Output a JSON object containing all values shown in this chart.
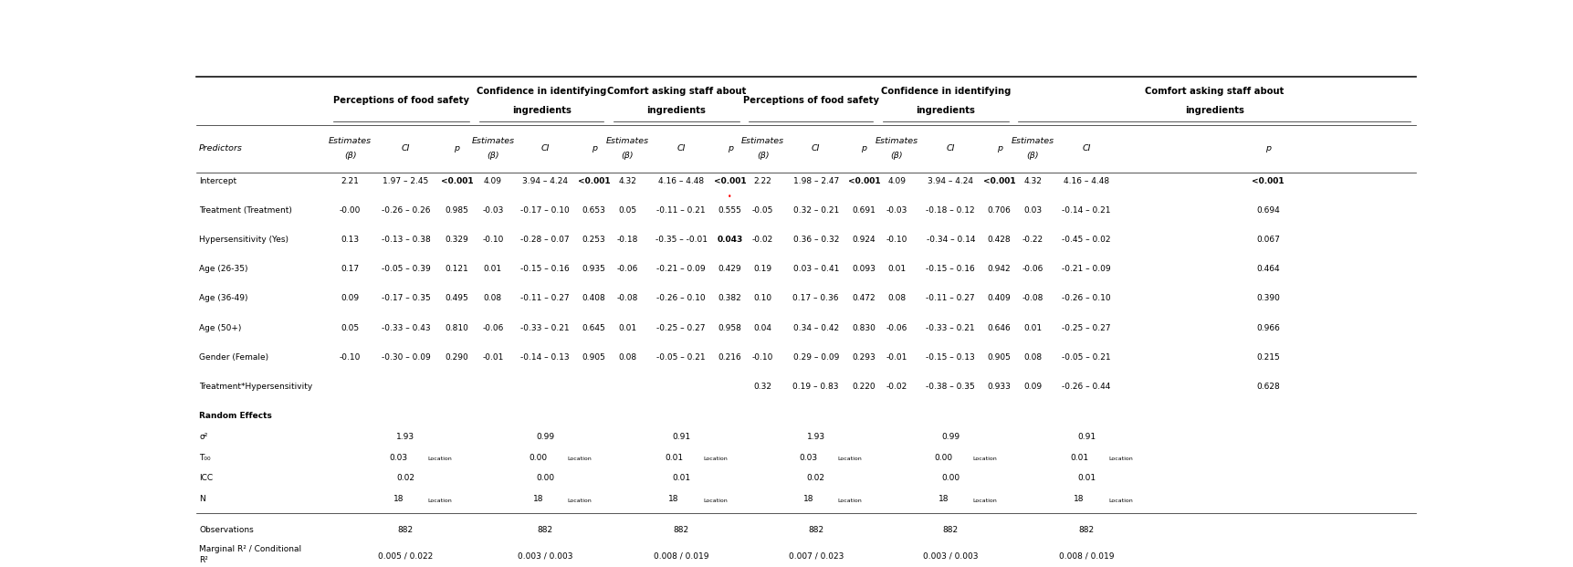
{
  "fig_width": 17.23,
  "fig_height": 6.21,
  "bg_color": "#ffffff",
  "group_headers": [
    "Perceptions of food safety",
    "Confidence in identifying\ningredients",
    "Comfort asking staff about\ningredients",
    "Perceptions of food safety",
    "Confidence in identifying\ningredients",
    "Comfort asking staff about\ningredients"
  ],
  "rows": [
    {
      "label": "Intercept",
      "data": [
        "2.21",
        "1.97 – 2.45",
        "<0.001",
        "4.09",
        "3.94 – 4.24",
        "<0.001",
        "4.32",
        "4.16 – 4.48",
        "<0.001",
        "2.22",
        "1.98 – 2.47",
        "<0.001",
        "4.09",
        "3.94 – 4.24",
        "<0.001",
        "4.32",
        "4.16 – 4.48",
        "<0.001"
      ],
      "bold_indices": [
        2,
        5,
        8,
        11,
        14,
        17
      ],
      "red_dot_col": 8
    },
    {
      "label": "Treatment (Treatment)",
      "data": [
        "-0.00",
        "-0.26 – 0.26",
        "0.985",
        "-0.03",
        "-0.17 – 0.10",
        "0.653",
        "0.05",
        "-0.11 – 0.21",
        "0.555",
        "-0.05",
        "0.32 – 0.21",
        "0.691",
        "-0.03",
        "-0.18 – 0.12",
        "0.706",
        "0.03",
        "-0.14 – 0.21",
        "0.694"
      ],
      "bold_indices": [],
      "red_dot_col": -1
    },
    {
      "label": "Hypersensitivity (Yes)",
      "data": [
        "0.13",
        "-0.13 – 0.38",
        "0.329",
        "-0.10",
        "-0.28 – 0.07",
        "0.253",
        "-0.18",
        "-0.35 – -0.01",
        "0.043",
        "-0.02",
        "0.36 – 0.32",
        "0.924",
        "-0.10",
        "-0.34 – 0.14",
        "0.428",
        "-0.22",
        "-0.45 – 0.02",
        "0.067"
      ],
      "bold_indices": [
        8
      ],
      "red_dot_col": -1
    },
    {
      "label": "Age (26-35)",
      "data": [
        "0.17",
        "-0.05 – 0.39",
        "0.121",
        "0.01",
        "-0.15 – 0.16",
        "0.935",
        "-0.06",
        "-0.21 – 0.09",
        "0.429",
        "0.19",
        "0.03 – 0.41",
        "0.093",
        "0.01",
        "-0.15 – 0.16",
        "0.942",
        "-0.06",
        "-0.21 – 0.09",
        "0.464"
      ],
      "bold_indices": [],
      "red_dot_col": -1
    },
    {
      "label": "Age (36-49)",
      "data": [
        "0.09",
        "-0.17 – 0.35",
        "0.495",
        "0.08",
        "-0.11 – 0.27",
        "0.408",
        "-0.08",
        "-0.26 – 0.10",
        "0.382",
        "0.10",
        "0.17 – 0.36",
        "0.472",
        "0.08",
        "-0.11 – 0.27",
        "0.409",
        "-0.08",
        "-0.26 – 0.10",
        "0.390"
      ],
      "bold_indices": [],
      "red_dot_col": -1
    },
    {
      "label": "Age (50+)",
      "data": [
        "0.05",
        "-0.33 – 0.43",
        "0.810",
        "-0.06",
        "-0.33 – 0.21",
        "0.645",
        "0.01",
        "-0.25 – 0.27",
        "0.958",
        "0.04",
        "0.34 – 0.42",
        "0.830",
        "-0.06",
        "-0.33 – 0.21",
        "0.646",
        "0.01",
        "-0.25 – 0.27",
        "0.966"
      ],
      "bold_indices": [],
      "red_dot_col": -1
    },
    {
      "label": "Gender (Female)",
      "data": [
        "-0.10",
        "-0.30 – 0.09",
        "0.290",
        "-0.01",
        "-0.14 – 0.13",
        "0.905",
        "0.08",
        "-0.05 – 0.21",
        "0.216",
        "-0.10",
        "0.29 – 0.09",
        "0.293",
        "-0.01",
        "-0.15 – 0.13",
        "0.905",
        "0.08",
        "-0.05 – 0.21",
        "0.215"
      ],
      "bold_indices": [],
      "red_dot_col": -1
    },
    {
      "label": "Treatment*Hypersensitivity",
      "data": [
        "",
        "",
        "",
        "",
        "",
        "",
        "",
        "",
        "",
        "0.32",
        "0.19 – 0.83",
        "0.220",
        "-0.02",
        "-0.38 – 0.35",
        "0.933",
        "0.09",
        "-0.26 – 0.44",
        "0.628"
      ],
      "bold_indices": [],
      "red_dot_col": -1
    }
  ],
  "re_rows": [
    {
      "label": "σ²",
      "vals": [
        "1.93",
        "0.99",
        "0.91",
        "1.93",
        "0.99",
        "0.91"
      ],
      "is_location": false
    },
    {
      "label": "T₀₀",
      "vals": [
        "0.03",
        "0.00",
        "0.01",
        "0.03",
        "0.00",
        "0.01"
      ],
      "is_location": true
    },
    {
      "label": "ICC",
      "vals": [
        "0.02",
        "0.00",
        "0.01",
        "0.02",
        "0.00",
        "0.01"
      ],
      "is_location": false
    },
    {
      "label": "N",
      "vals": [
        "18",
        "18",
        "18",
        "18",
        "18",
        "18"
      ],
      "is_location": true
    }
  ],
  "obs_vals": [
    "882",
    "882",
    "882",
    "882",
    "882",
    "882"
  ],
  "marg_vals": [
    "0.005 / 0.022",
    "0.003 / 0.003",
    "0.008 / 0.019",
    "0.007 / 0.023",
    "0.003 / 0.003",
    "0.008 / 0.019"
  ]
}
